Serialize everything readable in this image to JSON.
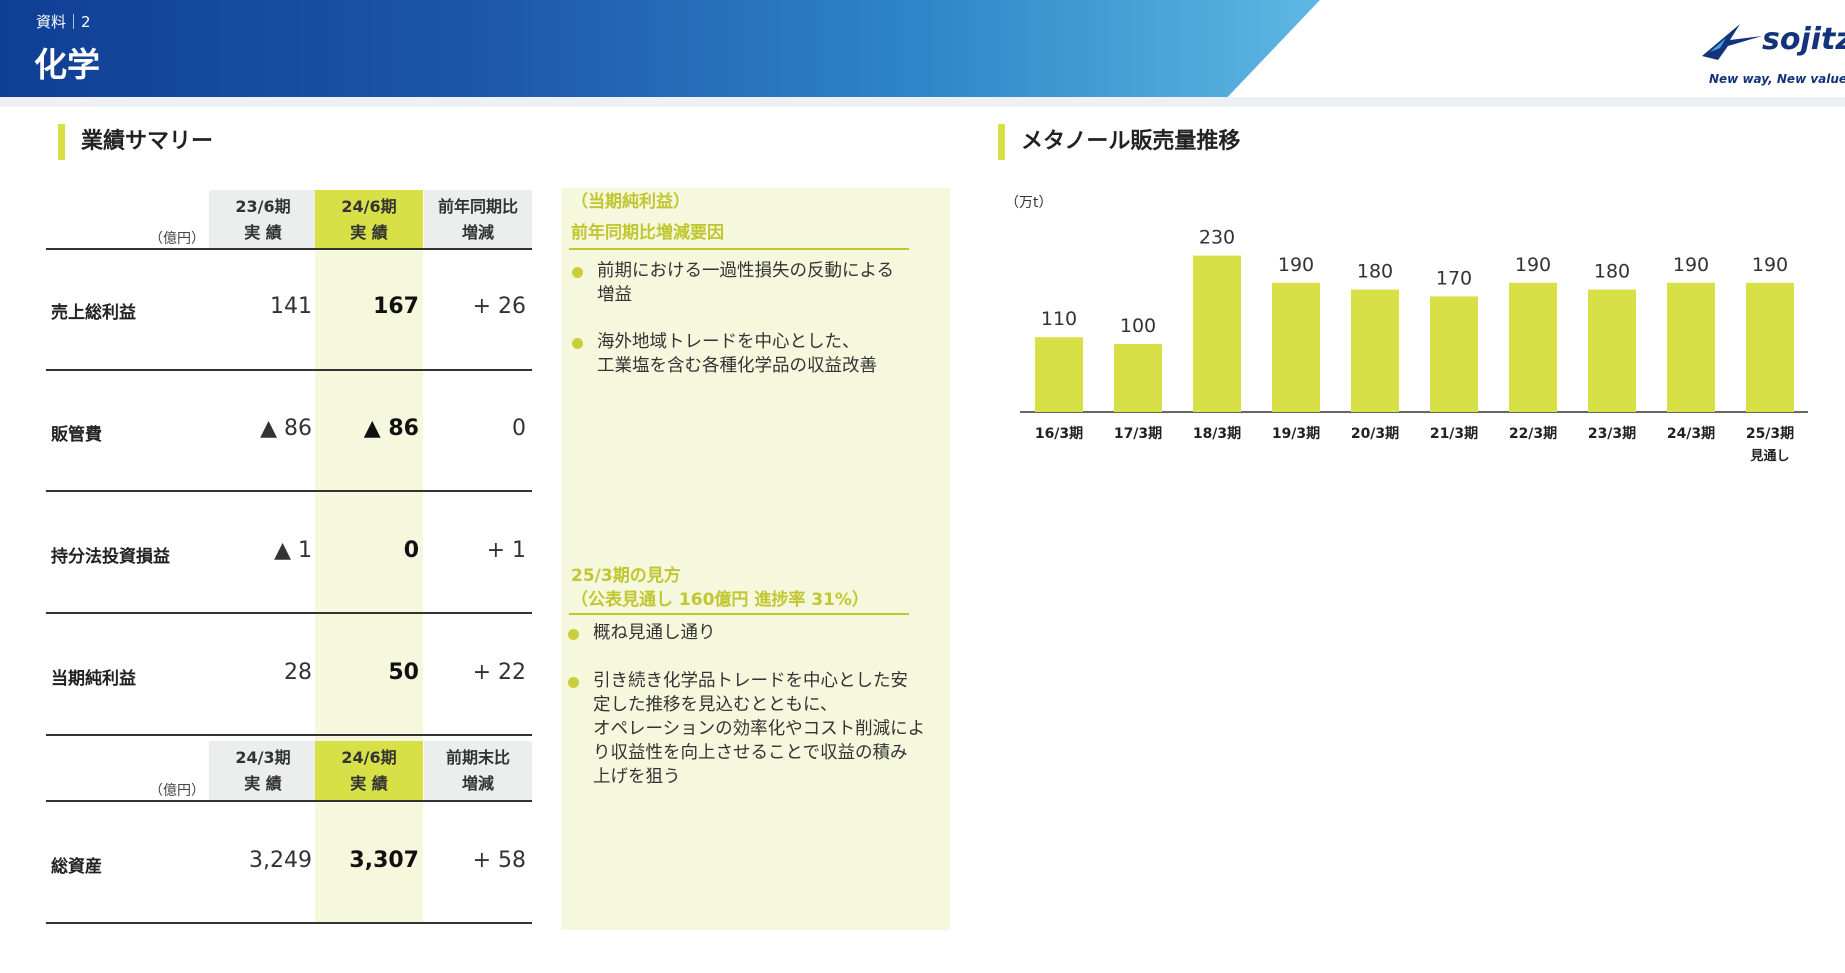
{
  "header": {
    "crumb": "資料｜2",
    "title": "化学",
    "logo_name": "sojitz",
    "logo_tagline": "New way, New value"
  },
  "summary": {
    "section_title": "業績サマリー",
    "unit": "（億円）",
    "table1": {
      "headers": [
        {
          "line1": "23/6期",
          "line2": "実 績"
        },
        {
          "line1": "24/6期",
          "line2": "実 績"
        },
        {
          "line1": "前年同期比",
          "line2": "増減"
        }
      ],
      "rows": [
        {
          "label": "売上総利益",
          "prev": "141",
          "curr": "167",
          "diff": "+ 26"
        },
        {
          "label": "販管費",
          "prev": "▲ 86",
          "curr": "▲ 86",
          "diff": "0"
        },
        {
          "label": "持分法投資損益",
          "prev": "▲ 1",
          "curr": "0",
          "diff": "+ 1"
        },
        {
          "label": "当期純利益",
          "prev": "28",
          "curr": "50",
          "diff": "+ 22"
        }
      ]
    },
    "table2": {
      "headers": [
        {
          "line1": "24/3期",
          "line2": "実 績"
        },
        {
          "line1": "24/6期",
          "line2": "実 績"
        },
        {
          "line1": "前期末比",
          "line2": "増減"
        }
      ],
      "rows": [
        {
          "label": "総資産",
          "prev": "3,249",
          "curr": "3,307",
          "diff": "+ 58"
        }
      ]
    }
  },
  "factors": {
    "title1_line1": "（当期純利益）",
    "title1_line2": "前年同期比増減要因",
    "bullets1": [
      "前期における一過性損失の反動による\n増益",
      "海外地域トレードを中心とした、\n工業塩を含む各種化学品の収益改善"
    ],
    "title2_line1": "25/3期の見方",
    "title2_line2": "（公表見通し 160億円 進捗率 31%）",
    "bullets2": [
      "概ね見通し通り",
      "引き続き化学品トレードを中心とした安\n定した推移を見込むとともに、\nオペレーションの効率化やコスト削減によ\nり収益性を向上させることで収益の積み\n上げを狙う"
    ]
  },
  "chart_section_title": "メタノール販売量推移",
  "chart_data": {
    "type": "bar",
    "unit_label": "（万t）",
    "categories": [
      "16/3期",
      "17/3期",
      "18/3期",
      "19/3期",
      "20/3期",
      "21/3期",
      "22/3期",
      "23/3期",
      "24/3期",
      "25/3期"
    ],
    "category_sublabels": [
      "",
      "",
      "",
      "",
      "",
      "",
      "",
      "",
      "",
      "見通し"
    ],
    "values": [
      110,
      100,
      230,
      190,
      180,
      170,
      190,
      180,
      190,
      190
    ],
    "bar_color": "#d8e048",
    "grid": false
  }
}
